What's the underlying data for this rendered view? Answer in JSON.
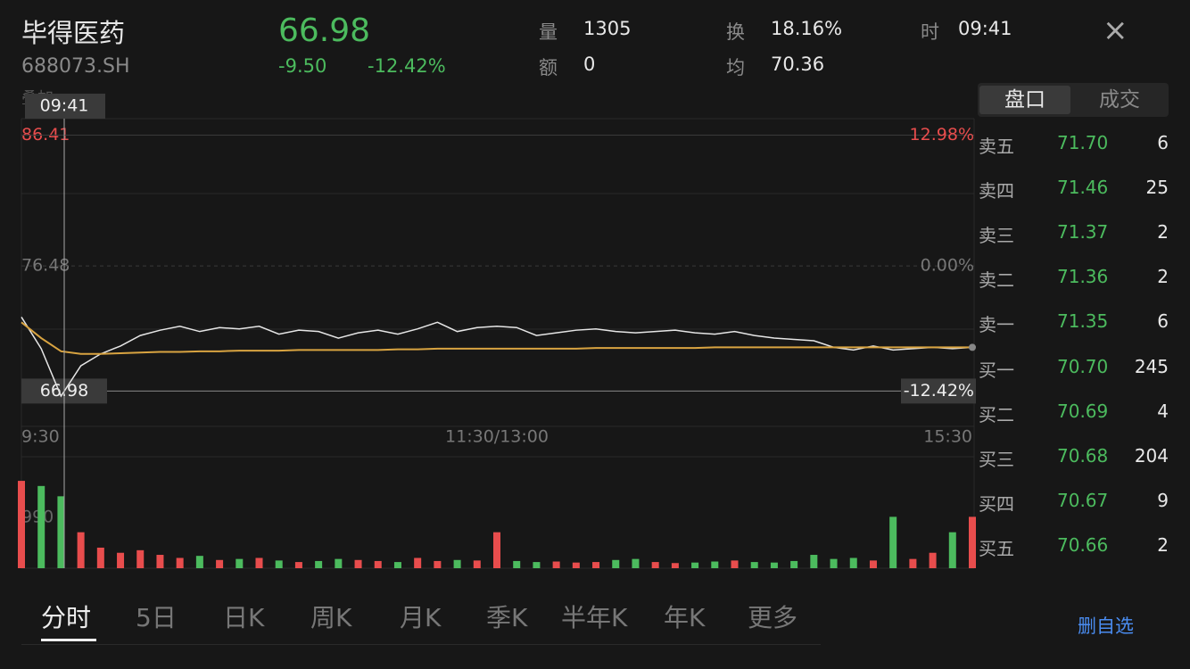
{
  "header": {
    "name": "毕得医药",
    "code": "688073.SH",
    "price": "66.98",
    "change": "-9.50",
    "change_pct": "-12.42%",
    "stats": [
      {
        "label": "量",
        "value": "1305"
      },
      {
        "label": "额",
        "value": "0"
      },
      {
        "label": "换",
        "value": "18.16%"
      },
      {
        "label": "均",
        "value": "70.36"
      },
      {
        "label": "时",
        "value": "09:41"
      }
    ]
  },
  "overlay_label": "叠加",
  "chart_data": {
    "type": "line",
    "crosshair_time": "09:41",
    "categories": [
      "9:30",
      null,
      null,
      null,
      null,
      null,
      null,
      null,
      null,
      null,
      null,
      null,
      null,
      null,
      null,
      null,
      null,
      null,
      null,
      null,
      null,
      null,
      null,
      null,
      "11:30/13:00",
      null,
      null,
      null,
      null,
      null,
      null,
      null,
      null,
      null,
      null,
      null,
      null,
      null,
      null,
      null,
      null,
      null,
      null,
      null,
      null,
      null,
      null,
      null,
      "15:30"
    ],
    "series": [
      {
        "name": "price",
        "color": "#e6e6e6",
        "values": [
          72.6,
          70.2,
          66.6,
          68.9,
          69.8,
          70.4,
          71.2,
          71.6,
          71.9,
          71.5,
          71.8,
          71.7,
          71.9,
          71.3,
          71.6,
          71.5,
          71.0,
          71.4,
          71.6,
          71.3,
          71.7,
          72.2,
          71.5,
          71.8,
          71.9,
          71.8,
          71.2,
          71.4,
          71.6,
          71.7,
          71.5,
          71.4,
          71.5,
          71.6,
          71.4,
          71.3,
          71.5,
          71.2,
          71.0,
          70.9,
          70.8,
          70.3,
          70.1,
          70.4,
          70.1,
          70.2,
          70.3,
          70.2,
          70.3
        ]
      },
      {
        "name": "avg",
        "color": "#d9a441",
        "values": [
          72.2,
          71.0,
          70.0,
          69.8,
          69.8,
          69.85,
          69.9,
          69.95,
          69.95,
          70.0,
          70.0,
          70.05,
          70.05,
          70.05,
          70.1,
          70.1,
          70.1,
          70.1,
          70.1,
          70.15,
          70.15,
          70.2,
          70.2,
          70.2,
          70.2,
          70.2,
          70.2,
          70.2,
          70.2,
          70.25,
          70.25,
          70.25,
          70.25,
          70.25,
          70.25,
          70.3,
          70.3,
          70.3,
          70.3,
          70.3,
          70.3,
          70.3,
          70.3,
          70.3,
          70.3,
          70.3,
          70.3,
          70.3,
          70.3
        ]
      }
    ],
    "ylim": [
      64.3,
      87.66
    ],
    "yticks": [
      86.41,
      76.48
    ],
    "y2lim": [
      -15.93,
      14.62
    ],
    "y2ticks": [
      {
        "value": 12.98,
        "label": "12.98%"
      },
      {
        "value": 0,
        "label": "0.00%"
      }
    ],
    "last_price": 66.98,
    "last_pct": {
      "value": -12.42,
      "label": "-12.42%"
    },
    "volume": {
      "values": [
        1700,
        1600,
        1400,
        700,
        400,
        300,
        350,
        260,
        200,
        240,
        160,
        180,
        200,
        150,
        120,
        140,
        180,
        160,
        140,
        120,
        200,
        140,
        160,
        150,
        700,
        140,
        120,
        130,
        110,
        120,
        160,
        180,
        120,
        100,
        110,
        130,
        150,
        120,
        110,
        140,
        260,
        180,
        200,
        150,
        1000,
        180,
        300,
        700,
        1000
      ],
      "ylim": [
        0,
        2170
      ],
      "yticks": [
        990
      ]
    }
  },
  "order_tabs": [
    "盘口",
    "成交"
  ],
  "order_book": [
    [
      "卖五",
      "71.70",
      "6"
    ],
    [
      "卖四",
      "71.46",
      "25"
    ],
    [
      "卖三",
      "71.37",
      "2"
    ],
    [
      "卖二",
      "71.36",
      "2"
    ],
    [
      "卖一",
      "71.35",
      "6"
    ],
    [
      "买一",
      "70.70",
      "245"
    ],
    [
      "买二",
      "70.69",
      "4"
    ],
    [
      "买三",
      "70.68",
      "204"
    ],
    [
      "买四",
      "70.67",
      "9"
    ],
    [
      "买五",
      "70.66",
      "2"
    ]
  ],
  "period_tabs": [
    "分时",
    "5日",
    "日K",
    "周K",
    "月K",
    "季K",
    "半年K",
    "年K",
    "更多"
  ],
  "action": "删自选"
}
